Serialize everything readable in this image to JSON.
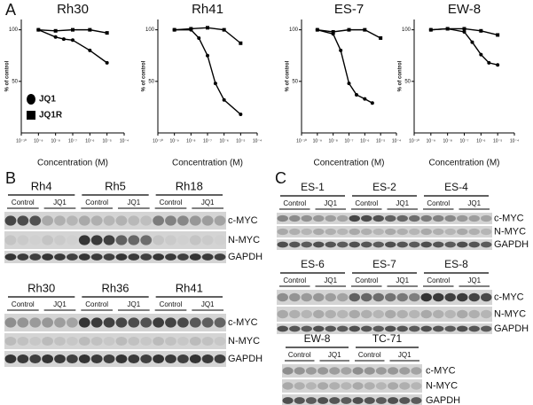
{
  "panel_labels": [
    "A",
    "B",
    "C"
  ],
  "chart_data": [
    {
      "type": "line",
      "title": "Rh30",
      "x_label": "Concentration (M)",
      "y_label": "% of control",
      "xscale": "log",
      "xlim": [
        1e-10,
        0.0001
      ],
      "xticks": [
        {
          "value": 1e-10,
          "label": "10⁻¹⁰"
        },
        {
          "value": 1e-09,
          "label": "10⁻⁹"
        },
        {
          "value": 1e-08,
          "label": "10⁻⁸"
        },
        {
          "value": 1e-07,
          "label": "10⁻⁷"
        },
        {
          "value": 1e-06,
          "label": "10⁻⁶"
        },
        {
          "value": 1e-05,
          "label": "10⁻⁵"
        },
        {
          "value": 0.0001,
          "label": "10⁻⁴"
        }
      ],
      "ylim": [
        0,
        110
      ],
      "yticks": [
        50,
        100
      ],
      "legend": "lower left",
      "series": [
        {
          "name": "JQ1",
          "marker": "circle",
          "color": "#000000",
          "x": [
            1e-09,
            1e-08,
            3e-08,
            1e-07,
            1e-06,
            1e-05
          ],
          "values": [
            100,
            93,
            91,
            90,
            80,
            68
          ]
        },
        {
          "name": "JQ1R",
          "marker": "square",
          "color": "#000000",
          "x": [
            1e-09,
            1e-08,
            1e-07,
            1e-06,
            1e-05
          ],
          "values": [
            100,
            99,
            100,
            100,
            97
          ]
        }
      ]
    },
    {
      "type": "line",
      "title": "Rh41",
      "x_label": "Concentration (M)",
      "y_label": "% of control",
      "xscale": "log",
      "xlim": [
        1e-10,
        0.0001
      ],
      "xticks": [
        {
          "value": 1e-10,
          "label": "10⁻¹⁰"
        },
        {
          "value": 1e-09,
          "label": "10⁻⁹"
        },
        {
          "value": 1e-08,
          "label": "10⁻⁸"
        },
        {
          "value": 1e-07,
          "label": "10⁻⁷"
        },
        {
          "value": 1e-06,
          "label": "10⁻⁶"
        },
        {
          "value": 1e-05,
          "label": "10⁻⁵"
        },
        {
          "value": 0.0001,
          "label": "10⁻⁴"
        }
      ],
      "ylim": [
        0,
        110
      ],
      "yticks": [
        50,
        100
      ],
      "series": [
        {
          "marker": "circle",
          "color": "#000000",
          "x": [
            1e-09,
            1e-08,
            3e-08,
            1e-07,
            3e-07,
            1e-06,
            1e-05
          ],
          "values": [
            100,
            100,
            92,
            75,
            48,
            32,
            18
          ]
        },
        {
          "marker": "square",
          "color": "#000000",
          "x": [
            1e-09,
            1e-08,
            1e-07,
            1e-06,
            1e-05
          ],
          "values": [
            100,
            101,
            102,
            100,
            87
          ]
        }
      ]
    },
    {
      "type": "line",
      "title": "ES-7",
      "x_label": "Concentration (M)",
      "y_label": "% of control",
      "xscale": "log",
      "xlim": [
        1e-10,
        0.0001
      ],
      "xticks": [
        {
          "value": 1e-10,
          "label": "10⁻¹⁰"
        },
        {
          "value": 1e-09,
          "label": "10⁻⁹"
        },
        {
          "value": 1e-08,
          "label": "10⁻⁸"
        },
        {
          "value": 1e-07,
          "label": "10⁻⁷"
        },
        {
          "value": 1e-06,
          "label": "10⁻⁶"
        },
        {
          "value": 1e-05,
          "label": "10⁻⁵"
        },
        {
          "value": 0.0001,
          "label": "10⁻⁴"
        }
      ],
      "ylim": [
        0,
        110
      ],
      "yticks": [
        50,
        100
      ],
      "series": [
        {
          "marker": "circle",
          "color": "#000000",
          "x": [
            1e-09,
            1e-08,
            3e-08,
            1e-07,
            3e-07,
            1e-06,
            3e-06
          ],
          "values": [
            100,
            96,
            80,
            48,
            37,
            33,
            29
          ]
        },
        {
          "marker": "square",
          "color": "#000000",
          "x": [
            1e-09,
            1e-08,
            1e-07,
            1e-06,
            1e-05
          ],
          "values": [
            100,
            98,
            100,
            100,
            92
          ]
        }
      ]
    },
    {
      "type": "line",
      "title": "EW-8",
      "x_label": "Concentration (M)",
      "y_label": "% of control",
      "xscale": "log",
      "xlim": [
        1e-10,
        0.0001
      ],
      "xticks": [
        {
          "value": 1e-10,
          "label": "10⁻¹⁰"
        },
        {
          "value": 1e-09,
          "label": "10⁻⁹"
        },
        {
          "value": 1e-08,
          "label": "10⁻⁸"
        },
        {
          "value": 1e-07,
          "label": "10⁻⁷"
        },
        {
          "value": 1e-06,
          "label": "10⁻⁶"
        },
        {
          "value": 1e-05,
          "label": "10⁻⁵"
        },
        {
          "value": 0.0001,
          "label": "10⁻⁴"
        }
      ],
      "ylim": [
        0,
        110
      ],
      "yticks": [
        50,
        100
      ],
      "series": [
        {
          "marker": "circle",
          "color": "#000000",
          "x": [
            1e-09,
            1e-08,
            1e-07,
            3e-07,
            1e-06,
            3e-06,
            1e-05
          ],
          "values": [
            100,
            101,
            98,
            88,
            76,
            68,
            66
          ]
        },
        {
          "marker": "square",
          "color": "#000000",
          "x": [
            1e-09,
            1e-08,
            1e-07,
            1e-06,
            1e-05
          ],
          "values": [
            100,
            101,
            101,
            99,
            95
          ]
        }
      ]
    }
  ],
  "blots": [
    {
      "cell_lines": [
        "Rh4",
        "Rh5",
        "Rh18"
      ],
      "groups": [
        "Control",
        "JQ1",
        "Control",
        "JQ1",
        "Control",
        "JQ1"
      ],
      "rows": [
        "c-MYC",
        "N-MYC",
        "GAPDH"
      ]
    },
    {
      "cell_lines": [
        "Rh30",
        "Rh36",
        "Rh41"
      ],
      "groups": [
        "Control",
        "JQ1",
        "Control",
        "JQ1",
        "Control",
        "JQ1"
      ],
      "rows": [
        "c-MYC",
        "N-MYC",
        "GAPDH"
      ]
    },
    {
      "cell_lines": [
        "ES-1",
        "ES-2",
        "ES-4"
      ],
      "groups": [
        "Control",
        "JQ1",
        "Control",
        "JQ1",
        "Control",
        "JQ1"
      ],
      "rows": [
        "c-MYC",
        "N-MYC",
        "GAPDH"
      ]
    },
    {
      "cell_lines": [
        "ES-6",
        "ES-7",
        "ES-8"
      ],
      "groups": [
        "Control",
        "JQ1",
        "Control",
        "JQ1",
        "Control",
        "JQ1"
      ],
      "rows": [
        "c-MYC",
        "N-MYC",
        "GAPDH"
      ]
    },
    {
      "cell_lines": [
        "EW-8",
        "TC-71"
      ],
      "groups": [
        "Control",
        "JQ1",
        "Control",
        "JQ1"
      ],
      "rows": [
        "c-MYC",
        "N-MYC",
        "GAPDH"
      ]
    }
  ]
}
